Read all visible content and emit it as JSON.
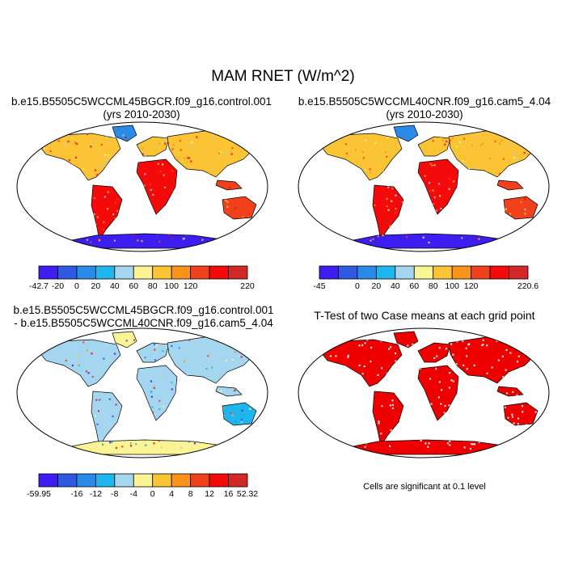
{
  "title": "MAM RNET (W/m^2)",
  "panels": [
    {
      "id": "control",
      "title_lines": [
        "b.e15.B5505C5WCCML45BGCR.f09_g16.control.001",
        "(yrs 2010-2030)"
      ],
      "colorbar": {
        "colors": [
          "#3c1ef0",
          "#2d5ae0",
          "#2a8ae8",
          "#1fb6ee",
          "#a4d6f0",
          "#faf494",
          "#fbc434",
          "#f8941c",
          "#f0401c",
          "#f40a0a",
          "#d22828"
        ],
        "labels": [
          "-42.7",
          "-20",
          "0",
          "20",
          "40",
          "60",
          "80",
          "100",
          "120",
          "",
          "220"
        ]
      }
    },
    {
      "id": "cam5",
      "title_lines": [
        "b.e15.B5505C5WCCML40CNR.f09_g16.cam5_4.04",
        "(yrs 2010-2030)"
      ],
      "colorbar": {
        "colors": [
          "#3c1ef0",
          "#2d5ae0",
          "#2a8ae8",
          "#1fb6ee",
          "#a4d6f0",
          "#faf494",
          "#fbc434",
          "#f8941c",
          "#f0401c",
          "#f40a0a",
          "#d22828"
        ],
        "labels": [
          "-45",
          "",
          "0",
          "20",
          "40",
          "60",
          "80",
          "100",
          "120",
          "",
          "220.6"
        ]
      }
    },
    {
      "id": "difference",
      "title_lines": [
        "b.e15.B5505C5WCCML45BGCR.f09_g16.control.001",
        "- b.e15.B5505C5WCCML40CNR.f09_g16.cam5_4.04"
      ],
      "colorbar": {
        "colors": [
          "#3c1ef0",
          "#2d5ae0",
          "#2a8ae8",
          "#1fb6ee",
          "#a4d6f0",
          "#faf494",
          "#fbc434",
          "#f8941c",
          "#f0401c",
          "#f40a0a",
          "#d22828"
        ],
        "labels": [
          "-59.95",
          "",
          "-16",
          "-12",
          "-8",
          "-4",
          "0",
          "4",
          "8",
          "12",
          "16",
          "52.32"
        ]
      }
    },
    {
      "id": "ttest",
      "title_lines": [
        "T-Test of two Case means at each grid point"
      ],
      "note": "Cells are significant at 0.1 level",
      "fill_color": "#ee0000"
    }
  ]
}
